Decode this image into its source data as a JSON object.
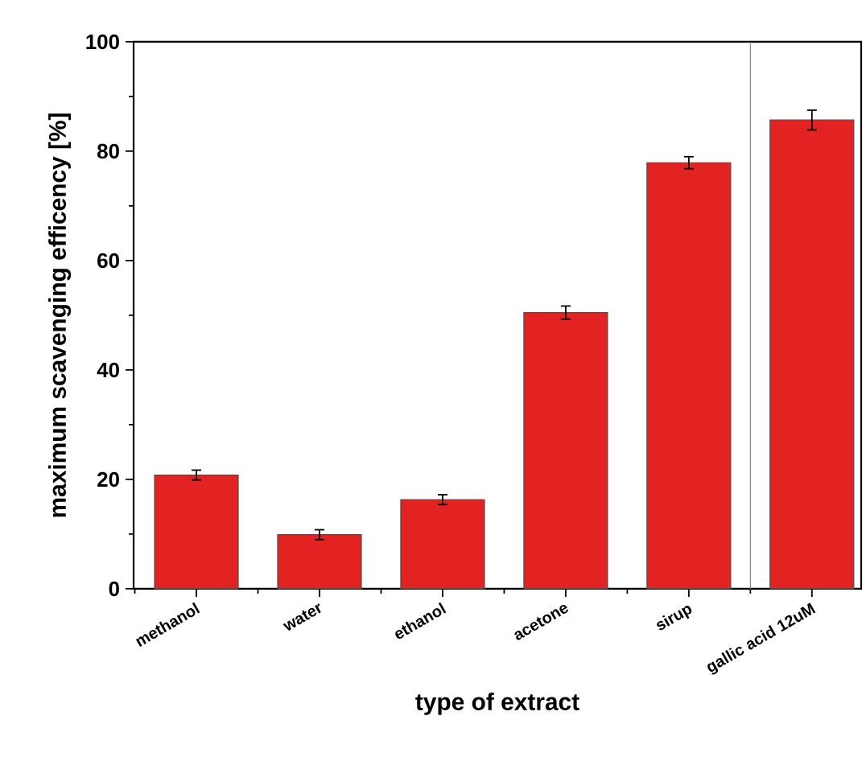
{
  "chart_data": {
    "type": "bar",
    "xlabel": "type of extract",
    "ylabel": "maximum scavenging efficency [%]",
    "categories": [
      "methanol",
      "water",
      "ethanol",
      "acetone",
      "sirup",
      "gallic acid 12uM"
    ],
    "values": [
      20.8,
      9.9,
      16.3,
      50.5,
      77.9,
      85.7
    ],
    "errors": [
      0.9,
      0.9,
      0.9,
      1.2,
      1.1,
      1.8
    ],
    "color": "#e32222",
    "ylim": [
      0,
      100
    ],
    "yticks": [
      0,
      20,
      40,
      60,
      80,
      100
    ]
  }
}
